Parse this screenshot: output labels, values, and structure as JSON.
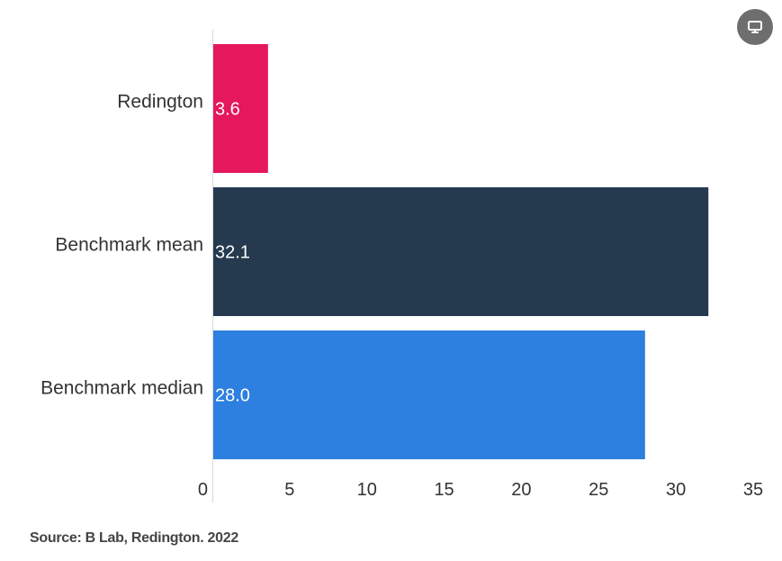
{
  "chart_data": {
    "type": "bar",
    "orientation": "horizontal",
    "categories": [
      "Redington",
      "Benchmark mean",
      "Benchmark median"
    ],
    "values": [
      3.6,
      32.1,
      28.0
    ],
    "value_labels": [
      "3.6",
      "32.1",
      "28.0"
    ],
    "colors": [
      "#e5175d",
      "#263a4f",
      "#2d7fe0"
    ],
    "xlim": [
      0,
      35
    ],
    "x_ticks": [
      "0",
      "5",
      "10",
      "15",
      "20",
      "25",
      "30",
      "35"
    ],
    "grid": false,
    "source": "Source: B Lab, Redington. 2022"
  },
  "controls": {
    "view_toggle_icon": "monitor-icon"
  }
}
